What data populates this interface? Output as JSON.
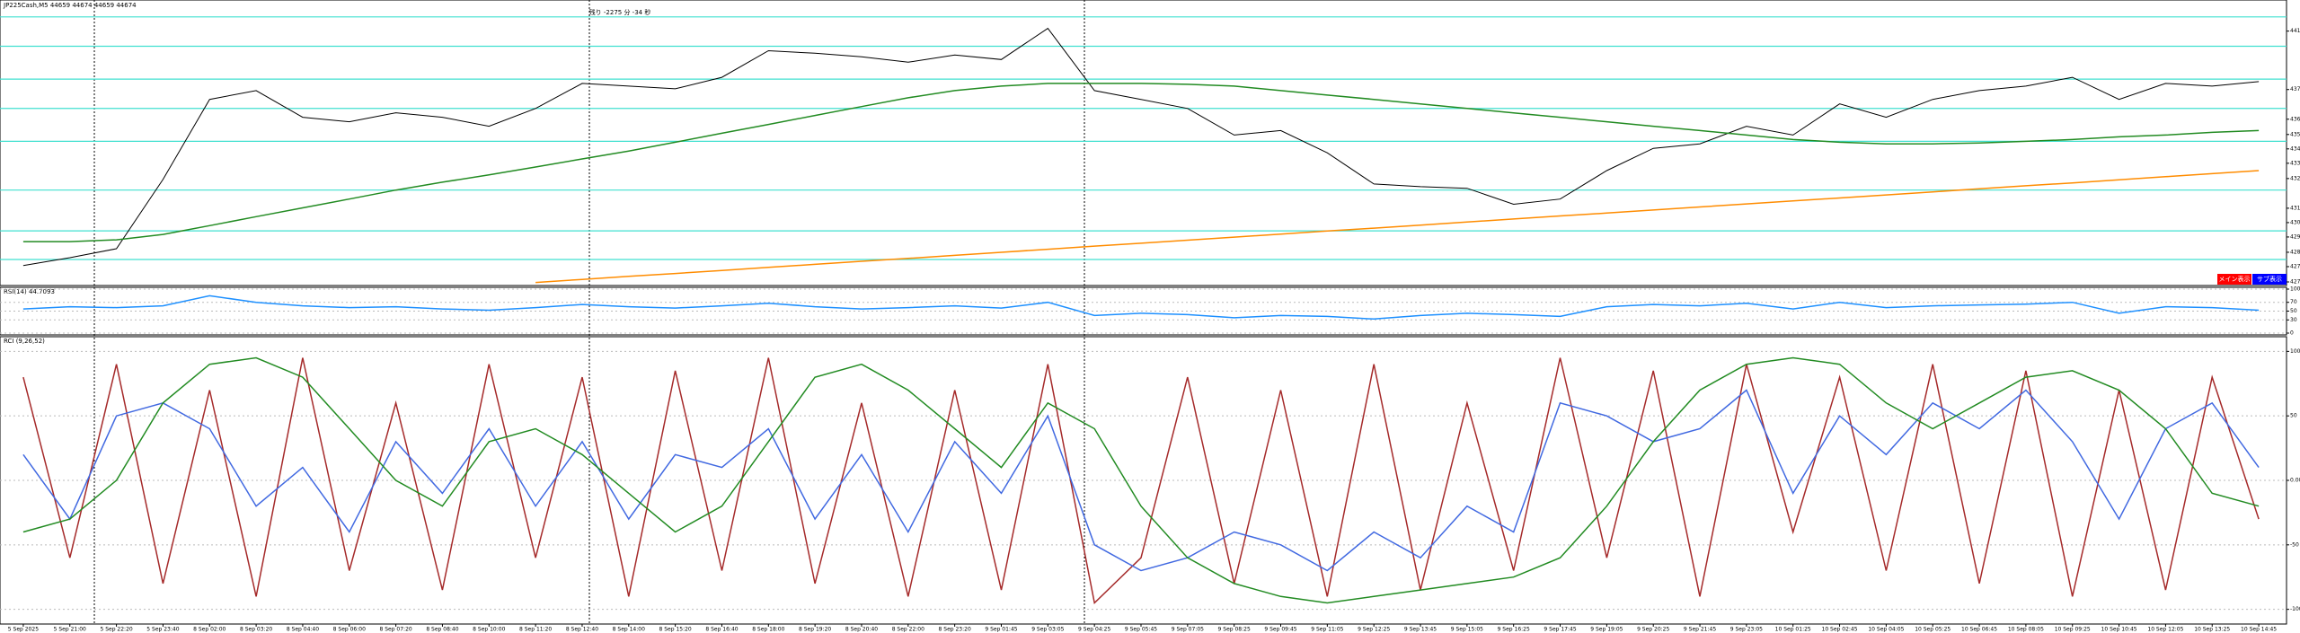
{
  "chart_data": [
    {
      "type": "line",
      "title": "JP225Cash,M5  44659 44674 44659 44674",
      "annotation": "残り -2275 分 -34 秒",
      "categories": [
        "5 Sep 2025",
        "5 Sep 21:00",
        "5 Sep 22:20",
        "5 Sep 23:40",
        "8 Sep 02:00",
        "8 Sep 03:20",
        "8 Sep 04:40",
        "8 Sep 06:00",
        "8 Sep 07:20",
        "8 Sep 08:40",
        "8 Sep 10:00",
        "8 Sep 11:20",
        "8 Sep 12:40",
        "8 Sep 14:00",
        "8 Sep 15:20",
        "8 Sep 16:40",
        "8 Sep 18:00",
        "8 Sep 19:20",
        "8 Sep 20:40",
        "8 Sep 22:00",
        "8 Sep 23:20",
        "9 Sep 01:45",
        "9 Sep 03:05",
        "9 Sep 04:25",
        "9 Sep 05:45",
        "9 Sep 07:05",
        "9 Sep 08:25",
        "9 Sep 09:45",
        "9 Sep 11:05",
        "9 Sep 12:25",
        "9 Sep 13:45",
        "9 Sep 15:05",
        "9 Sep 16:25",
        "9 Sep 17:45",
        "9 Sep 19:05",
        "9 Sep 20:25",
        "9 Sep 21:45",
        "9 Sep 23:05",
        "10 Sep 01:25",
        "10 Sep 02:45",
        "10 Sep 04:05",
        "10 Sep 05:25",
        "10 Sep 06:45",
        "10 Sep 08:05",
        "10 Sep 09:25",
        "10 Sep 10:45",
        "10 Sep 12:05",
        "10 Sep 13:25",
        "10 Sep 14:45"
      ],
      "series": [
        {
          "color": "#000000",
          "values": [
            42802,
            42846,
            42896,
            43281,
            43726,
            43775,
            43627,
            43602,
            43652,
            43627,
            43577,
            43676,
            43815,
            43800,
            43785,
            43849,
            43997,
            43983,
            43963,
            43933,
            43973,
            43948,
            44121,
            43775,
            43726,
            43676,
            43528,
            43553,
            43429,
            43256,
            43241,
            43232,
            43143,
            43172,
            43330,
            43454,
            43479,
            43577,
            43528,
            43701,
            43627,
            43726,
            43775,
            43800,
            43849,
            43726,
            43815,
            43800,
            43825
          ]
        },
        {
          "color": "#228b22",
          "values": [
            42935,
            42935,
            42945,
            42975,
            43024,
            43074,
            43123,
            43172,
            43222,
            43266,
            43306,
            43350,
            43395,
            43439,
            43488,
            43538,
            43587,
            43637,
            43686,
            43735,
            43775,
            43800,
            43815,
            43815,
            43815,
            43810,
            43800,
            43775,
            43750,
            43726,
            43701,
            43676,
            43651,
            43627,
            43602,
            43577,
            43553,
            43528,
            43503,
            43488,
            43479,
            43479,
            43484,
            43493,
            43503,
            43518,
            43528,
            43543,
            43553
          ]
        },
        {
          "color": "#ff8c00",
          "values": [
            null,
            null,
            null,
            null,
            null,
            null,
            null,
            null,
            null,
            null,
            null,
            42708,
            42725,
            42742,
            42758,
            42775,
            42792,
            42809,
            42826,
            42842,
            42859,
            42876,
            42893,
            42910,
            42926,
            42943,
            42960,
            42977,
            42994,
            43010,
            43027,
            43044,
            43061,
            43078,
            43094,
            43111,
            43128,
            43145,
            43162,
            43178,
            43195,
            43212,
            43229,
            43246,
            43262,
            43279,
            43296,
            43313,
            43330
          ]
        }
      ],
      "levels": {
        "color": "#40e0d0",
        "values": [
          44185,
          44022,
          43839,
          43676,
          43493,
          43222,
          42995,
          42836
        ]
      },
      "ylim": [
        42701,
        44269
      ],
      "yticks": [
        44106,
        43781,
        43616,
        43531,
        43451,
        43371,
        43286,
        43121,
        43041,
        42961,
        42876,
        42796,
        42711
      ],
      "buttons": [
        "メイン表示",
        "サブ表示"
      ]
    },
    {
      "type": "line",
      "title": "RSI(14) 44.7093",
      "series": [
        {
          "color": "#1e90ff",
          "values": [
            55,
            60,
            58,
            62,
            85,
            70,
            62,
            58,
            60,
            55,
            52,
            58,
            65,
            60,
            57,
            62,
            68,
            60,
            55,
            58,
            62,
            57,
            70,
            40,
            45,
            42,
            35,
            40,
            38,
            32,
            40,
            45,
            42,
            38,
            60,
            65,
            62,
            68,
            55,
            70,
            58,
            62,
            64,
            66,
            70,
            45,
            60,
            58,
            52
          ]
        }
      ],
      "ylim": [
        0,
        100
      ],
      "yticks": [
        100,
        70,
        50,
        30,
        0
      ]
    },
    {
      "type": "line",
      "title": "RCI (9,26,52)",
      "series": [
        {
          "color": "#a52a2a",
          "values": [
            80,
            -60,
            90,
            -80,
            70,
            -90,
            95,
            -70,
            60,
            -85,
            90,
            -60,
            80,
            -90,
            85,
            -70,
            95,
            -80,
            60,
            -90,
            70,
            -85,
            90,
            -95,
            -60,
            80,
            -80,
            70,
            -90,
            90,
            -85,
            60,
            -70,
            95,
            -60,
            85,
            -90,
            90,
            -40,
            80,
            -70,
            90,
            -80,
            85,
            -90,
            70,
            -85,
            80,
            -30
          ]
        },
        {
          "color": "#4169e1",
          "values": [
            20,
            -30,
            50,
            60,
            40,
            -20,
            10,
            -40,
            30,
            -10,
            40,
            -20,
            30,
            -30,
            20,
            10,
            40,
            -30,
            20,
            -40,
            30,
            -10,
            50,
            -50,
            -70,
            -60,
            -40,
            -50,
            -70,
            -40,
            -60,
            -20,
            -40,
            60,
            50,
            30,
            40,
            70,
            -10,
            50,
            20,
            60,
            40,
            70,
            30,
            -30,
            40,
            60,
            10
          ]
        },
        {
          "color": "#228b22",
          "values": [
            -40,
            -30,
            0,
            60,
            90,
            95,
            80,
            40,
            0,
            -20,
            30,
            40,
            20,
            -10,
            -40,
            -20,
            30,
            80,
            90,
            70,
            40,
            10,
            60,
            40,
            -20,
            -60,
            -80,
            -90,
            -95,
            -90,
            -85,
            -80,
            -75,
            -60,
            -20,
            30,
            70,
            90,
            95,
            90,
            60,
            40,
            60,
            80,
            85,
            70,
            40,
            -10,
            -20
          ]
        }
      ],
      "ylim": [
        -110,
        110
      ],
      "yticks": [
        100,
        50,
        {
          "value": 0,
          "label": "0.00"
        },
        -50,
        -100
      ]
    }
  ]
}
